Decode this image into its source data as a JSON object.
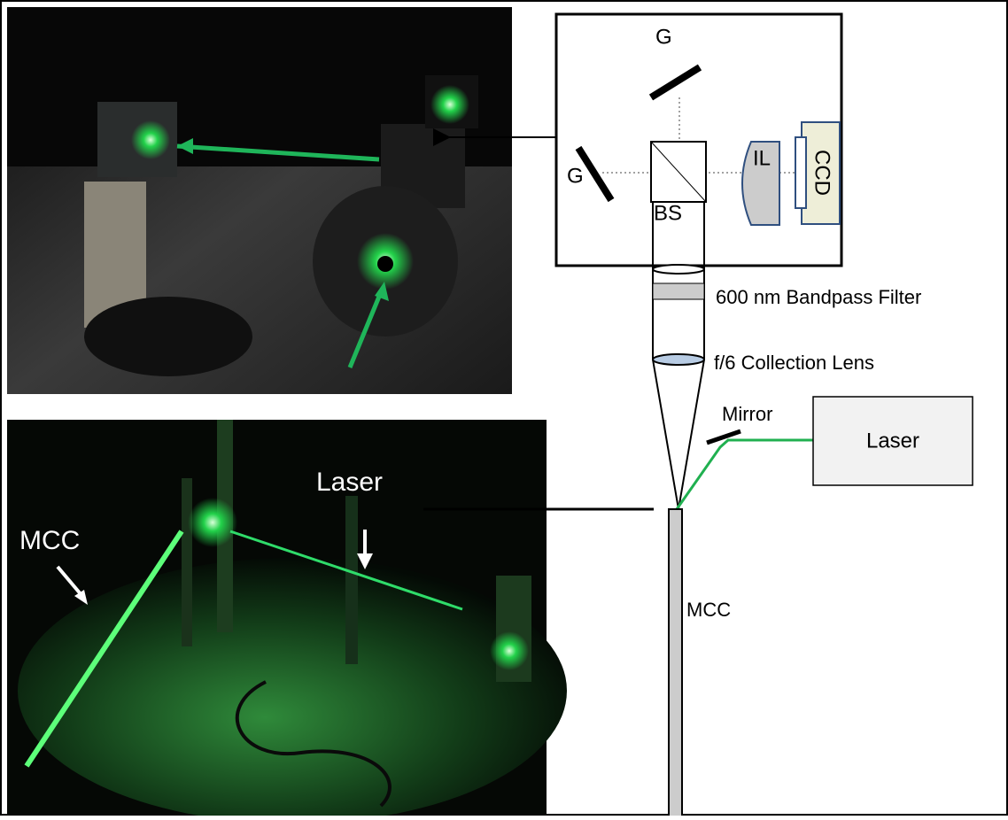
{
  "schematic": {
    "grating_top": "G",
    "grating_left": "G",
    "imaging_lens": "IL",
    "camera": "CCD",
    "beam_splitter": "BS",
    "filter": "600 nm Bandpass Filter",
    "collection_lens": "f/6 Collection Lens",
    "mirror": "Mirror",
    "laser": "Laser",
    "burner": "MCC"
  },
  "photo_bottom": {
    "laser_label": "Laser",
    "mcc_label": "MCC"
  }
}
